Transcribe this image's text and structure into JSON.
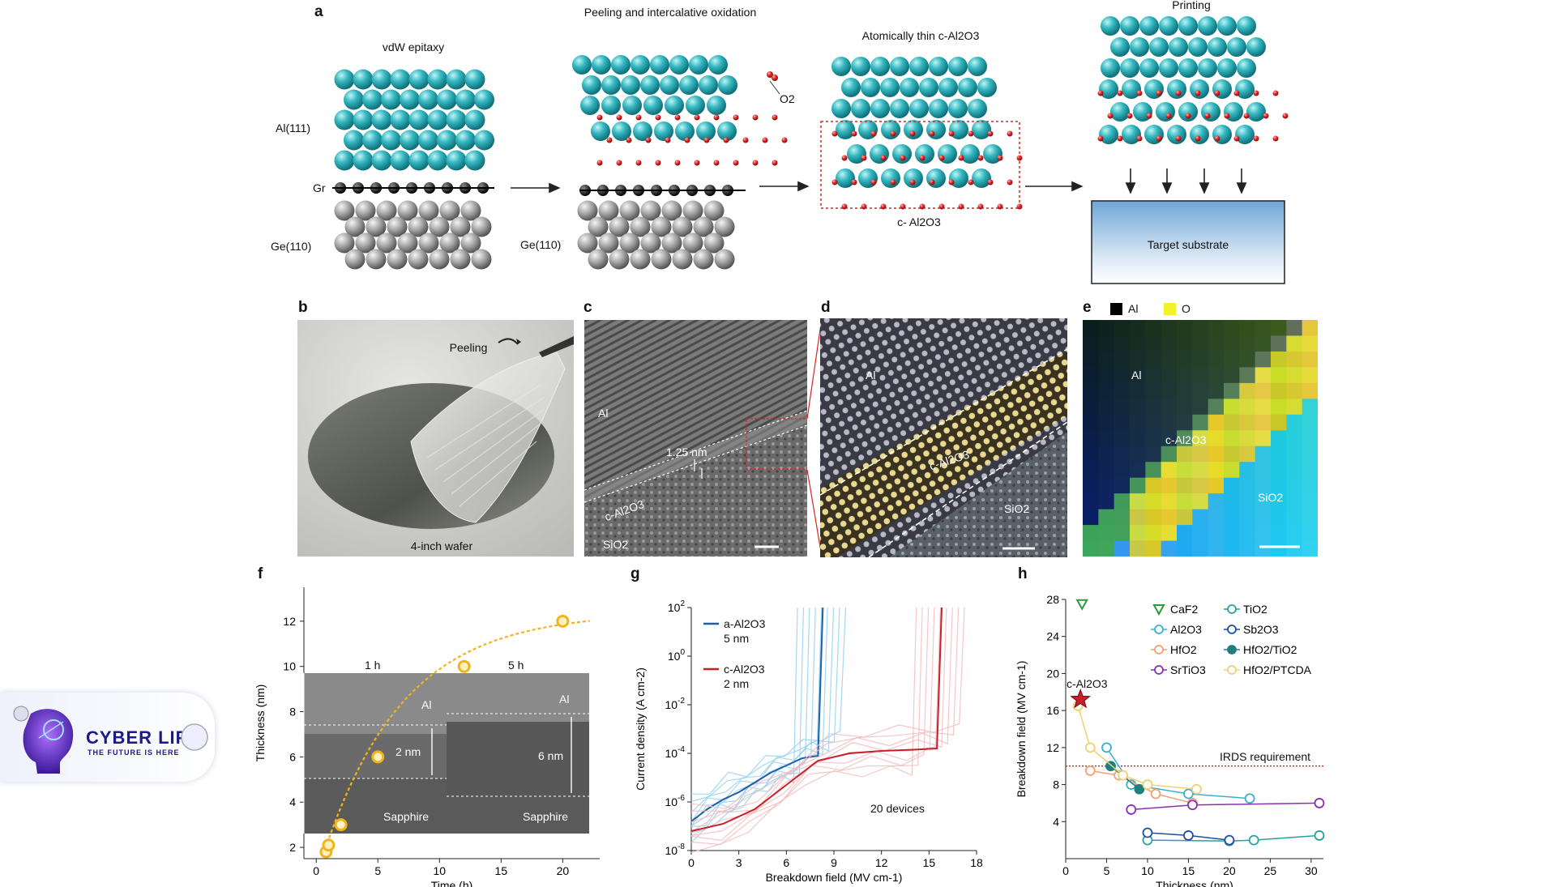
{
  "panel_a": {
    "label": "a",
    "step1_title": "vdW epitaxy",
    "step2_title": "Peeling and intercalative oxidation",
    "step3_title": "Atomically thin c-Al2O3",
    "step4_title": "Printing",
    "al_label": "Al(111)",
    "gr_label": "Gr",
    "ge_label_1": "Ge(110)",
    "ge_label_2": "Ge(110)",
    "o2_label": "O2",
    "cal2o3_label": "c- Al2O3",
    "target_label": "Target substrate"
  },
  "panel_b": {
    "label": "b",
    "peeling": "Peeling",
    "wafer": "4-inch wafer"
  },
  "panel_c": {
    "label": "c",
    "al": "Al",
    "thickness": "1.25 nm",
    "cal2o3": "c-Al2O3",
    "sio2": "SiO2"
  },
  "panel_d": {
    "label": "d",
    "al": "Al",
    "cal2o3": "c-Al2O3",
    "sio2": "SiO2"
  },
  "panel_e": {
    "label": "e",
    "legend_al": "Al",
    "legend_o": "O",
    "al": "Al",
    "cal2o3": "c-Al2O3",
    "sio2": "SiO2",
    "legend_al_color": "#000000",
    "legend_o_color": "#f2f22a"
  },
  "panel_f": {
    "label": "f",
    "inset_left_title": "1 h",
    "inset_right_title": "5 h",
    "inset_al": "Al",
    "inset_sapphire": "Sapphire",
    "inset_left_thickness": "2 nm",
    "inset_right_thickness": "6 nm"
  },
  "panel_g": {
    "label": "g",
    "legend_a": "a-Al2O3",
    "legend_a_thk": "5 nm",
    "legend_c": "c-Al2O3",
    "legend_c_thk": "2 nm",
    "devices": "20 devices"
  },
  "panel_h": {
    "label": "h",
    "cal2o3_annotation": "c-Al2O3",
    "irds": "IRDS requirement"
  },
  "logo": {
    "name": "CYBER LIFE",
    "tagline": "THE FUTURE IS HERE"
  },
  "chart_data": [
    {
      "type": "scatter",
      "id": "f",
      "xlabel": "Time (h)",
      "ylabel": "Thickness (nm)",
      "xlim": [
        -1,
        23
      ],
      "ylim": [
        1.5,
        13.5
      ],
      "xticks": [
        0,
        5,
        10,
        15,
        20
      ],
      "yticks": [
        2,
        4,
        6,
        8,
        10,
        12
      ],
      "points": [
        [
          0.8,
          1.8
        ],
        [
          1,
          2.1
        ],
        [
          2,
          3
        ],
        [
          5,
          6
        ],
        [
          12,
          10
        ],
        [
          20,
          12
        ]
      ],
      "color": "#f2b41a"
    },
    {
      "type": "line",
      "id": "g",
      "xlabel": "Breakdown field (MV cm-1)",
      "ylabel": "Current density (A cm-2)",
      "xlim": [
        0,
        18
      ],
      "ylog_range": [
        -8,
        2
      ],
      "xticks": [
        0,
        3,
        6,
        9,
        12,
        15,
        18
      ],
      "yticks": [
        "10^2",
        "10^0",
        "10^-2",
        "10^-4",
        "10^-6",
        "10^-8"
      ],
      "series": [
        {
          "name": "a-Al2O3",
          "color": "#1f5fa8",
          "breakdown": 8.3,
          "x": [
            0,
            1,
            2,
            3,
            4,
            5,
            6,
            7,
            8,
            8.3
          ],
          "log_y": [
            -6.8,
            -6.3,
            -5.9,
            -5.6,
            -5.2,
            -4.8,
            -4.5,
            -4.2,
            -4.1,
            2
          ]
        },
        {
          "name": "c-Al2O3",
          "color": "#c8202a",
          "breakdown": 15.8,
          "x": [
            0,
            2,
            4,
            6,
            8,
            10,
            12,
            14,
            15.5,
            15.8
          ],
          "log_y": [
            -7.2,
            -6.9,
            -6.3,
            -5.3,
            -4.3,
            -4.0,
            -3.9,
            -3.85,
            -3.8,
            2
          ]
        }
      ]
    },
    {
      "type": "scatter",
      "id": "h",
      "xlabel": "Thickness (nm)",
      "ylabel": "Breakdown field (MV cm-1)",
      "xlim": [
        0,
        31.5
      ],
      "ylim": [
        0,
        28
      ],
      "xticks": [
        0,
        5,
        10,
        15,
        20,
        25,
        30
      ],
      "yticks": [
        4,
        8,
        12,
        16,
        20,
        24,
        28
      ],
      "irds_requirement": 10,
      "series": [
        {
          "name": "CaF2",
          "color": "#2a9a3a",
          "marker": "triangle",
          "points": [
            [
              2,
              27.5
            ]
          ]
        },
        {
          "name": "Al2O3",
          "color": "#3ab0d0",
          "marker": "open",
          "points": [
            [
              5,
              12
            ],
            [
              8,
              8
            ],
            [
              15,
              7
            ],
            [
              22.5,
              6.5
            ]
          ]
        },
        {
          "name": "HfO2",
          "color": "#f2a070",
          "marker": "open",
          "points": [
            [
              3,
              9.5
            ],
            [
              6.5,
              9
            ],
            [
              11,
              7
            ],
            [
              15.5,
              6
            ]
          ]
        },
        {
          "name": "SrTiO3",
          "color": "#8a30b0",
          "marker": "open",
          "points": [
            [
              8,
              5.3
            ],
            [
              15.5,
              5.8
            ],
            [
              31,
              6
            ]
          ]
        },
        {
          "name": "TiO2",
          "color": "#2aa0a0",
          "marker": "open",
          "points": [
            [
              10,
              2
            ],
            [
              20,
              1.9
            ],
            [
              23,
              2
            ],
            [
              31,
              2.5
            ]
          ]
        },
        {
          "name": "Sb2O3",
          "color": "#1f4fa0",
          "marker": "open",
          "points": [
            [
              10,
              2.8
            ],
            [
              15,
              2.5
            ],
            [
              20,
              2
            ]
          ]
        },
        {
          "name": "HfO2/TiO2",
          "color": "#1f7f80",
          "marker": "filled",
          "points": [
            [
              5.5,
              10
            ],
            [
              9,
              7.5
            ]
          ]
        },
        {
          "name": "HfO2/PTCDA",
          "color": "#f0d070",
          "marker": "open",
          "points": [
            [
              1.5,
              16.5
            ],
            [
              3,
              12
            ],
            [
              7,
              9
            ],
            [
              10,
              8
            ],
            [
              16,
              7.5
            ]
          ]
        },
        {
          "name": "c-Al2O3",
          "color": "#c8202a",
          "marker": "star",
          "points": [
            [
              1.8,
              17.2
            ]
          ]
        }
      ]
    }
  ]
}
